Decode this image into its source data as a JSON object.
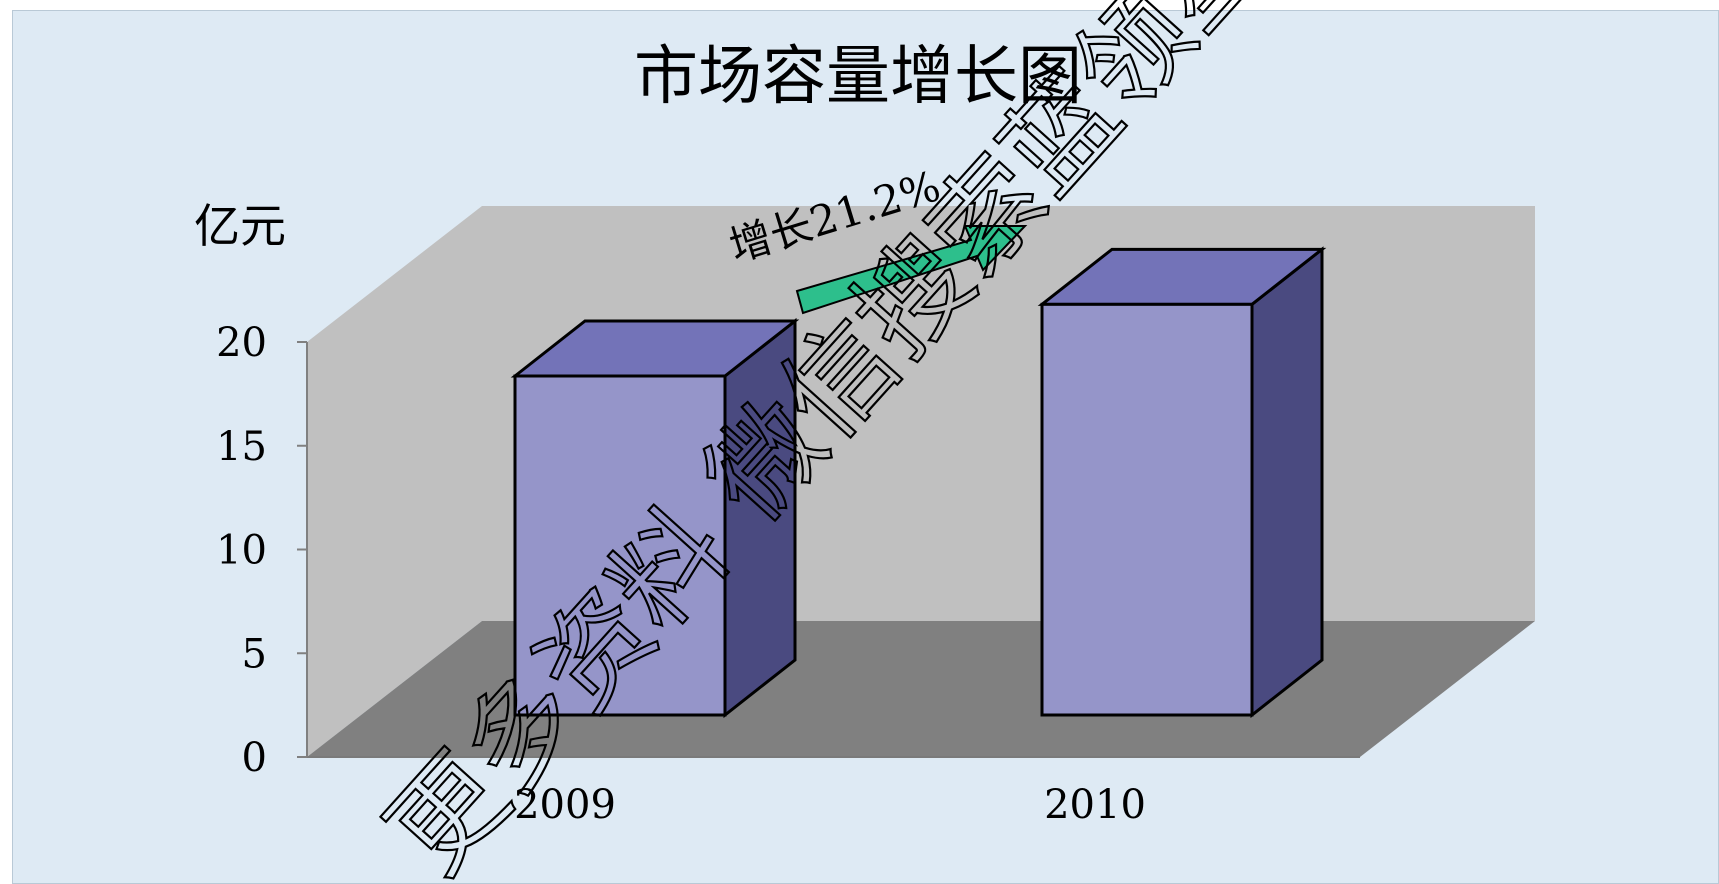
{
  "chart_data": {
    "type": "bar",
    "title": "市场容量增长图",
    "ylabel": "亿元",
    "xlabel": "",
    "categories": [
      "2009",
      "2010"
    ],
    "series": [
      {
        "values": [
          17.5,
          21.2
        ]
      }
    ],
    "ylim": [
      0,
      20
    ],
    "yticks": [
      "0",
      "5",
      "10",
      "15",
      "20"
    ],
    "annotation": "增长21.2%",
    "grid": false,
    "legend": "none",
    "style": "3d-column",
    "colors": {
      "bar_front": "#9595c9",
      "bar_top": "#7373b8",
      "bar_side": "#4a4a80",
      "back_wall": "#c0c0c0",
      "floor": "#808080",
      "arrow": "#2dbf8c",
      "background": "#deeaf4"
    }
  },
  "watermark": "更多资料 微信搜索蓝领星"
}
